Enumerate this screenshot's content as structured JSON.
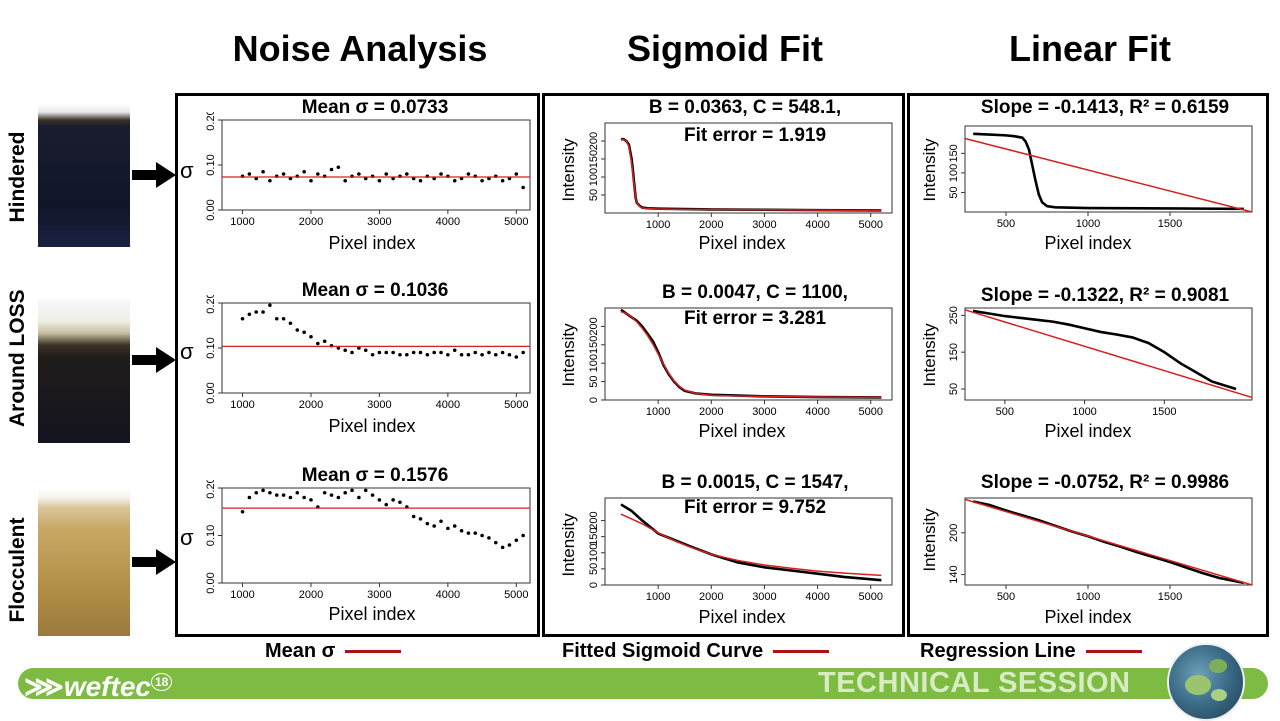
{
  "columns": {
    "noise": "Noise Analysis",
    "sigmoid": "Sigmoid Fit",
    "linear": "Linear Fit"
  },
  "rows": [
    "Hindered",
    "Around LOSS",
    "Flocculent"
  ],
  "sigma_symbol": "σ",
  "xlabel": "Pixel index",
  "ylabel": "Intensity",
  "colors": {
    "fit_line": "#d42020",
    "points": "#000000",
    "accent": "#7dbb42"
  },
  "legend": {
    "noise": "Mean σ",
    "sigmoid": "Fitted Sigmoid Curve",
    "linear": "Regression Line"
  },
  "footer": {
    "logo": "weftec",
    "logo_sup": "18",
    "session": "TECHNICAL SESSION"
  },
  "icons": [
    "arrow-right-icon",
    "weftec-logo-icon",
    "lily-pad-photo-icon",
    "sample-cylinder-photo"
  ],
  "chart_data": [
    {
      "type": "scatter",
      "panel": "noise",
      "row": "Hindered",
      "title": "Mean σ = 0.0733",
      "xlabel": "Pixel index",
      "ylabel": "σ",
      "xlim": [
        700,
        5200
      ],
      "ylim": [
        0,
        0.2
      ],
      "xticks": [
        1000,
        2000,
        3000,
        4000,
        5000
      ],
      "yticks": [
        "0.00",
        "0.10",
        "0.20"
      ],
      "mean": 0.0733,
      "x": [
        1000,
        1100,
        1200,
        1300,
        1400,
        1500,
        1600,
        1700,
        1800,
        1900,
        2000,
        2100,
        2200,
        2300,
        2400,
        2500,
        2600,
        2700,
        2800,
        2900,
        3000,
        3100,
        3200,
        3300,
        3400,
        3500,
        3600,
        3700,
        3800,
        3900,
        4000,
        4100,
        4200,
        4300,
        4400,
        4500,
        4600,
        4700,
        4800,
        4900,
        5000,
        5100
      ],
      "y": [
        0.075,
        0.08,
        0.07,
        0.085,
        0.065,
        0.075,
        0.08,
        0.07,
        0.075,
        0.085,
        0.065,
        0.08,
        0.075,
        0.09,
        0.095,
        0.065,
        0.075,
        0.08,
        0.07,
        0.075,
        0.065,
        0.08,
        0.07,
        0.075,
        0.08,
        0.07,
        0.065,
        0.075,
        0.07,
        0.08,
        0.075,
        0.065,
        0.07,
        0.08,
        0.075,
        0.065,
        0.07,
        0.075,
        0.065,
        0.07,
        0.08,
        0.05
      ]
    },
    {
      "type": "scatter",
      "panel": "noise",
      "row": "Around LOSS",
      "title": "Mean σ = 0.1036",
      "xlabel": "Pixel index",
      "ylabel": "σ",
      "xlim": [
        700,
        5200
      ],
      "ylim": [
        0,
        0.2
      ],
      "xticks": [
        1000,
        2000,
        3000,
        4000,
        5000
      ],
      "yticks": [
        "0.00",
        "0.10",
        "0.20"
      ],
      "mean": 0.1036,
      "x": [
        1000,
        1100,
        1200,
        1300,
        1400,
        1500,
        1600,
        1700,
        1800,
        1900,
        2000,
        2100,
        2200,
        2300,
        2400,
        2500,
        2600,
        2700,
        2800,
        2900,
        3000,
        3100,
        3200,
        3300,
        3400,
        3500,
        3600,
        3700,
        3800,
        3900,
        4000,
        4100,
        4200,
        4300,
        4400,
        4500,
        4600,
        4700,
        4800,
        4900,
        5000,
        5100
      ],
      "y": [
        0.165,
        0.175,
        0.18,
        0.18,
        0.195,
        0.165,
        0.165,
        0.155,
        0.14,
        0.135,
        0.125,
        0.11,
        0.115,
        0.105,
        0.1,
        0.095,
        0.09,
        0.1,
        0.095,
        0.085,
        0.09,
        0.09,
        0.09,
        0.085,
        0.085,
        0.09,
        0.09,
        0.085,
        0.09,
        0.09,
        0.085,
        0.095,
        0.085,
        0.085,
        0.09,
        0.085,
        0.09,
        0.085,
        0.09,
        0.085,
        0.08,
        0.09
      ]
    },
    {
      "type": "scatter",
      "panel": "noise",
      "row": "Flocculent",
      "title": "Mean σ = 0.1576",
      "xlabel": "Pixel index",
      "ylabel": "σ",
      "xlim": [
        700,
        5200
      ],
      "ylim": [
        0,
        0.2
      ],
      "xticks": [
        1000,
        2000,
        3000,
        4000,
        5000
      ],
      "yticks": [
        "0.00",
        "0.10",
        "0.20"
      ],
      "mean": 0.1576,
      "x": [
        1000,
        1100,
        1200,
        1300,
        1400,
        1500,
        1600,
        1700,
        1800,
        1900,
        2000,
        2100,
        2200,
        2300,
        2400,
        2500,
        2600,
        2700,
        2800,
        2900,
        3000,
        3100,
        3200,
        3300,
        3400,
        3500,
        3600,
        3700,
        3800,
        3900,
        4000,
        4100,
        4200,
        4300,
        4400,
        4500,
        4600,
        4700,
        4800,
        4900,
        5000,
        5100
      ],
      "y": [
        0.15,
        0.18,
        0.19,
        0.195,
        0.19,
        0.185,
        0.185,
        0.18,
        0.19,
        0.18,
        0.175,
        0.16,
        0.19,
        0.185,
        0.18,
        0.19,
        0.195,
        0.18,
        0.195,
        0.185,
        0.175,
        0.165,
        0.175,
        0.17,
        0.16,
        0.14,
        0.135,
        0.125,
        0.12,
        0.13,
        0.115,
        0.12,
        0.11,
        0.105,
        0.105,
        0.1,
        0.095,
        0.085,
        0.075,
        0.08,
        0.09,
        0.1
      ]
    },
    {
      "type": "line",
      "panel": "sigmoid",
      "row": "Hindered",
      "title": [
        "B = 0.0363, C = 548.1,",
        "Fit error = 1.919"
      ],
      "xlabel": "Pixel index",
      "ylabel": "Intensity",
      "xlim": [
        0,
        5400
      ],
      "ylim": [
        0,
        250
      ],
      "xticks": [
        1000,
        2000,
        3000,
        4000,
        5000
      ],
      "yticks": [
        50,
        100,
        150,
        200
      ],
      "x": [
        300,
        350,
        400,
        450,
        500,
        520,
        540,
        560,
        580,
        600,
        650,
        700,
        800,
        1000,
        1500,
        2000,
        3000,
        4000,
        5200
      ],
      "y": [
        205,
        205,
        200,
        190,
        150,
        125,
        95,
        65,
        40,
        28,
        20,
        15,
        13,
        12,
        11,
        10,
        9,
        8,
        7
      ],
      "fit": [
        205,
        204,
        200,
        185,
        140,
        115,
        88,
        62,
        42,
        30,
        18,
        14,
        12,
        11,
        10,
        10,
        9,
        8,
        7
      ]
    },
    {
      "type": "line",
      "panel": "sigmoid",
      "row": "Around LOSS",
      "title": [
        "B = 0.0047, C = 1100,",
        "Fit error = 3.281"
      ],
      "xlabel": "Pixel index",
      "ylabel": "Intensity",
      "xlim": [
        0,
        5400
      ],
      "ylim": [
        0,
        250
      ],
      "xticks": [
        1000,
        2000,
        3000,
        4000,
        5000
      ],
      "yticks": [
        0,
        50,
        100,
        150,
        200
      ],
      "x": [
        300,
        400,
        500,
        600,
        700,
        800,
        900,
        1000,
        1100,
        1200,
        1300,
        1400,
        1500,
        1700,
        2000,
        2500,
        3000,
        4000,
        5200
      ],
      "y": [
        245,
        235,
        225,
        215,
        200,
        180,
        160,
        130,
        95,
        70,
        50,
        35,
        25,
        18,
        14,
        12,
        10,
        8,
        7
      ],
      "fit": [
        240,
        235,
        226,
        212,
        195,
        175,
        152,
        125,
        98,
        72,
        52,
        37,
        27,
        18,
        13,
        11,
        10,
        8,
        7
      ]
    },
    {
      "type": "line",
      "panel": "sigmoid",
      "row": "Flocculent",
      "title": [
        "B = 0.0015, C = 1547,",
        "Fit error = 9.752"
      ],
      "xlabel": "Pixel index",
      "ylabel": "Intensity",
      "xlim": [
        0,
        5400
      ],
      "ylim": [
        0,
        270
      ],
      "xticks": [
        1000,
        2000,
        3000,
        4000,
        5000
      ],
      "yticks": [
        0,
        50,
        100,
        150,
        200
      ],
      "x": [
        300,
        500,
        700,
        1000,
        1300,
        1600,
        2000,
        2500,
        3000,
        3500,
        4000,
        4500,
        5200
      ],
      "y": [
        250,
        230,
        200,
        160,
        140,
        120,
        95,
        70,
        55,
        45,
        35,
        25,
        15
      ],
      "fit": [
        220,
        205,
        190,
        162,
        138,
        118,
        95,
        76,
        62,
        52,
        43,
        37,
        30
      ]
    },
    {
      "type": "line",
      "panel": "linear",
      "row": "Hindered",
      "title": "Slope = -0.1413, R² = 0.6159",
      "xlabel": "Pixel index",
      "ylabel": "Intensity",
      "xlim": [
        250,
        2000
      ],
      "ylim": [
        0,
        220
      ],
      "xticks": [
        500,
        1000,
        1500
      ],
      "yticks": [
        50,
        100,
        150
      ],
      "x": [
        300,
        400,
        500,
        550,
        600,
        620,
        640,
        660,
        680,
        700,
        720,
        750,
        800,
        900,
        1000,
        1500,
        1950
      ],
      "y": [
        200,
        198,
        196,
        194,
        190,
        180,
        160,
        120,
        80,
        45,
        25,
        15,
        12,
        11,
        10,
        9,
        8
      ],
      "fit": {
        "slope": -0.1413,
        "x0": 250,
        "y0": 188
      }
    },
    {
      "type": "line",
      "panel": "linear",
      "row": "Around LOSS",
      "title": "Slope = -0.1322, R² = 0.9081",
      "xlabel": "Pixel index",
      "ylabel": "Intensity",
      "xlim": [
        250,
        2050
      ],
      "ylim": [
        20,
        270
      ],
      "xticks": [
        500,
        1000,
        1500
      ],
      "yticks": [
        50,
        150,
        250
      ],
      "x": [
        300,
        400,
        500,
        600,
        700,
        800,
        900,
        1000,
        1100,
        1200,
        1300,
        1400,
        1500,
        1600,
        1700,
        1800,
        1950
      ],
      "y": [
        262,
        255,
        248,
        243,
        238,
        233,
        225,
        215,
        205,
        198,
        190,
        175,
        150,
        120,
        95,
        70,
        50
      ],
      "fit": {
        "slope": -0.1322,
        "x0": 250,
        "y0": 265
      }
    },
    {
      "type": "line",
      "panel": "linear",
      "row": "Flocculent",
      "title": "Slope = -0.0752, R² = 0.9986",
      "xlabel": "Pixel index",
      "ylabel": "Intensity",
      "xlim": [
        250,
        2000
      ],
      "ylim": [
        125,
        250
      ],
      "xticks": [
        500,
        1000,
        1500
      ],
      "yticks": [
        140,
        200
      ],
      "x": [
        300,
        400,
        500,
        600,
        700,
        800,
        900,
        1000,
        1100,
        1200,
        1300,
        1400,
        1500,
        1600,
        1700,
        1800,
        1950
      ],
      "y": [
        245,
        240,
        232,
        225,
        218,
        210,
        202,
        195,
        187,
        180,
        172,
        165,
        158,
        150,
        142,
        135,
        128
      ],
      "fit": {
        "slope": -0.0752,
        "x0": 250,
        "y0": 248
      }
    }
  ]
}
